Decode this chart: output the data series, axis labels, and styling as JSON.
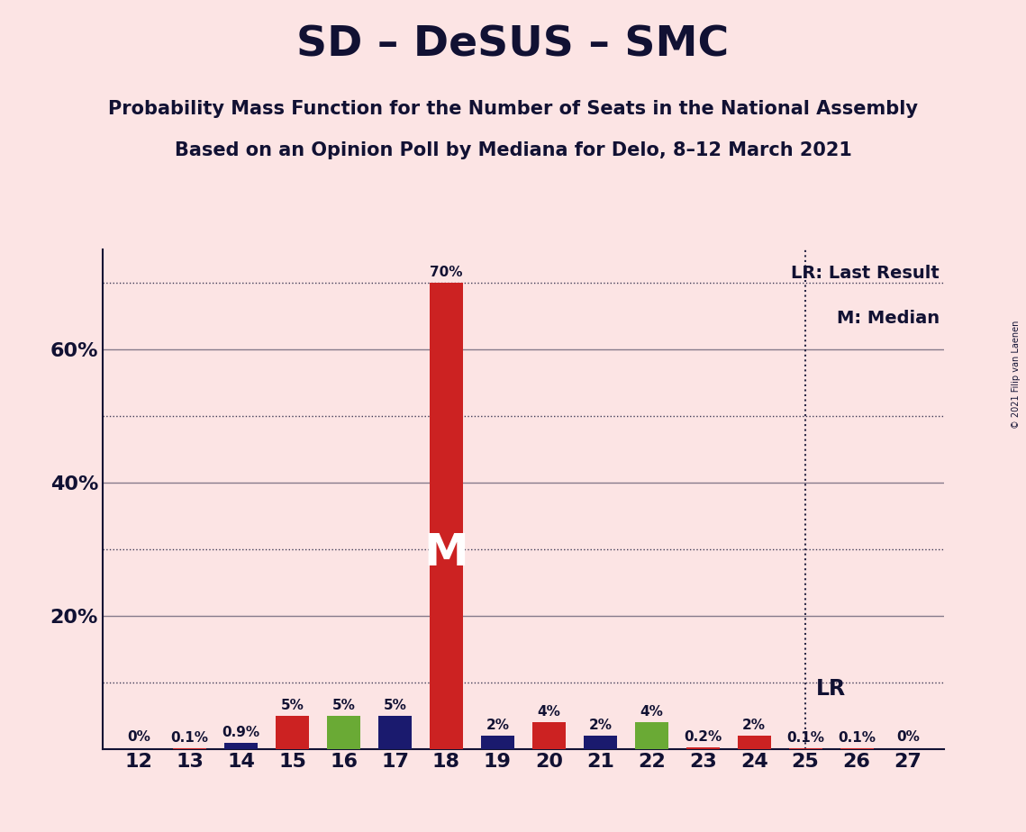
{
  "title": "SD – DeSUS – SMC",
  "subtitle1": "Probability Mass Function for the Number of Seats in the National Assembly",
  "subtitle2": "Based on an Opinion Poll by Mediana for Delo, 8–12 March 2021",
  "copyright": "© 2021 Filip van Laenen",
  "background_color": "#fce4e4",
  "seats": [
    12,
    13,
    14,
    15,
    16,
    17,
    18,
    19,
    20,
    21,
    22,
    23,
    24,
    25,
    26,
    27
  ],
  "values": [
    0.0,
    0.1,
    0.9,
    5.0,
    5.0,
    5.0,
    70.0,
    2.0,
    4.0,
    2.0,
    4.0,
    0.2,
    2.0,
    0.1,
    0.1,
    0.0
  ],
  "colors": [
    "#cc2222",
    "#cc2222",
    "#1a1a6e",
    "#cc2222",
    "#6aaa35",
    "#1a1a6e",
    "#cc2222",
    "#1a1a6e",
    "#cc2222",
    "#1a1a6e",
    "#6aaa35",
    "#cc2222",
    "#cc2222",
    "#cc2222",
    "#cc2222",
    "#cc2222"
  ],
  "labels": [
    "0%",
    "0.1%",
    "0.9%",
    "5%",
    "5%",
    "5%",
    "70%",
    "2%",
    "4%",
    "2%",
    "4%",
    "0.2%",
    "2%",
    "0.1%",
    "0.1%",
    "0%"
  ],
  "median_seat": 18,
  "last_result_seat": 25,
  "ylim": [
    0,
    75
  ],
  "solid_grid_ticks": [
    20,
    40,
    60
  ],
  "dotted_grid_ticks": [
    10,
    30,
    50,
    70
  ],
  "ytick_labels_left": {
    "20": "20%",
    "40": "40%",
    "60": "60%"
  },
  "title_color": "#111133",
  "bar_red": "#cc2222",
  "bar_green": "#6aaa35",
  "bar_blue": "#1a1a6e",
  "median_color": "#ffffff",
  "label_fontsize": 11,
  "axis_tick_fontsize": 16,
  "title_fontsize": 34,
  "subtitle_fontsize": 15
}
